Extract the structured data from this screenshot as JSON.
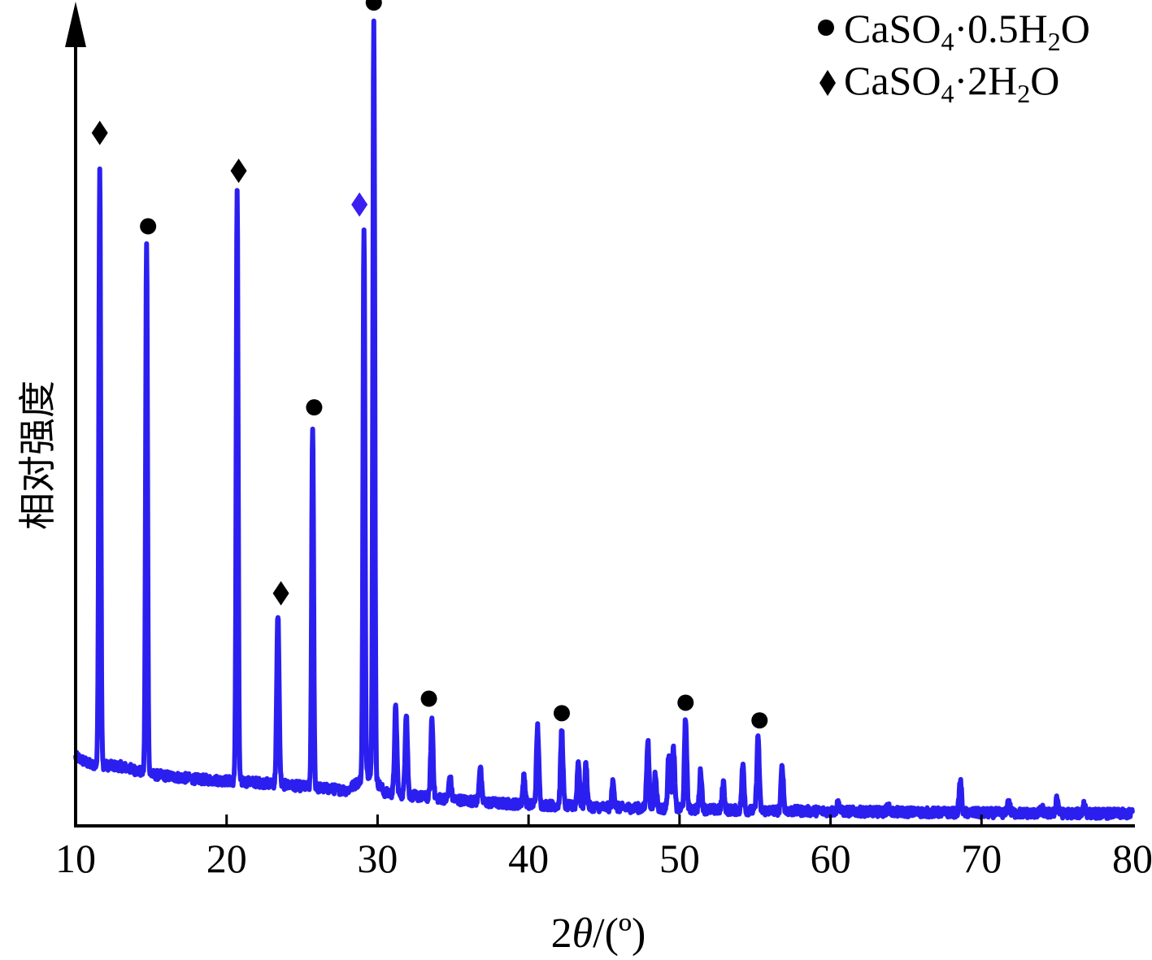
{
  "chart_data": {
    "type": "line",
    "xlabel_prefix": "2",
    "xlabel_symbol": "θ",
    "xlabel_suffix": "/(º)",
    "ylabel": "相对强度",
    "xlim": [
      10,
      80
    ],
    "ylim": [
      0,
      1
    ],
    "xticks": [
      "10",
      "20",
      "30",
      "40",
      "50",
      "60",
      "70",
      "80"
    ],
    "line_color": "#2b1ff0",
    "legend_position": "top-right",
    "legend": [
      {
        "marker": "circle",
        "formula": [
          "CaSO",
          "4",
          "·0.5H",
          "2",
          "O"
        ]
      },
      {
        "marker": "diamond",
        "formula": [
          "CaSO",
          "4",
          "·2H",
          "2",
          "O"
        ]
      }
    ],
    "baseline": [
      [
        10,
        0.08
      ],
      [
        11,
        0.07
      ],
      [
        13,
        0.068
      ],
      [
        15,
        0.058
      ],
      [
        18,
        0.052
      ],
      [
        20,
        0.05
      ],
      [
        22,
        0.048
      ],
      [
        25,
        0.043
      ],
      [
        28,
        0.038
      ],
      [
        29.5,
        0.06
      ],
      [
        30.5,
        0.035
      ],
      [
        33,
        0.03
      ],
      [
        38,
        0.022
      ],
      [
        45,
        0.017
      ],
      [
        50,
        0.015
      ],
      [
        55,
        0.013
      ],
      [
        60,
        0.012
      ],
      [
        70,
        0.01
      ],
      [
        80,
        0.009
      ]
    ],
    "peaks": [
      {
        "x": 11.6,
        "y": 0.813,
        "phase": "CaSO4·2H2O"
      },
      {
        "x": 14.7,
        "y": 0.715,
        "phase": "CaSO4·0.5H2O"
      },
      {
        "x": 20.7,
        "y": 0.78,
        "phase": "CaSO4·2H2O"
      },
      {
        "x": 23.4,
        "y": 0.257,
        "phase": "CaSO4·2H2O"
      },
      {
        "x": 25.7,
        "y": 0.49,
        "phase": "CaSO4·0.5H2O"
      },
      {
        "x": 29.1,
        "y": 0.74,
        "phase": "CaSO4·2H2O"
      },
      {
        "x": 29.75,
        "y": 0.99,
        "phase": "CaSO4·0.5H2O"
      },
      {
        "x": 31.2,
        "y": 0.14,
        "phase": ""
      },
      {
        "x": 31.9,
        "y": 0.135,
        "phase": ""
      },
      {
        "x": 33.6,
        "y": 0.127,
        "phase": "CaSO4·0.5H2O"
      },
      {
        "x": 34.8,
        "y": 0.055,
        "phase": ""
      },
      {
        "x": 36.8,
        "y": 0.068,
        "phase": ""
      },
      {
        "x": 39.7,
        "y": 0.055,
        "phase": ""
      },
      {
        "x": 40.6,
        "y": 0.117,
        "phase": ""
      },
      {
        "x": 42.2,
        "y": 0.113,
        "phase": "CaSO4·0.5H2O"
      },
      {
        "x": 43.3,
        "y": 0.075,
        "phase": ""
      },
      {
        "x": 43.8,
        "y": 0.07,
        "phase": ""
      },
      {
        "x": 45.6,
        "y": 0.05,
        "phase": ""
      },
      {
        "x": 47.9,
        "y": 0.1,
        "phase": ""
      },
      {
        "x": 48.4,
        "y": 0.06,
        "phase": ""
      },
      {
        "x": 49.3,
        "y": 0.085,
        "phase": ""
      },
      {
        "x": 49.6,
        "y": 0.09,
        "phase": ""
      },
      {
        "x": 50.4,
        "y": 0.126,
        "phase": "CaSO4·0.5H2O"
      },
      {
        "x": 51.4,
        "y": 0.062,
        "phase": ""
      },
      {
        "x": 52.9,
        "y": 0.048,
        "phase": ""
      },
      {
        "x": 54.2,
        "y": 0.07,
        "phase": ""
      },
      {
        "x": 55.2,
        "y": 0.105,
        "phase": "CaSO4·0.5H2O"
      },
      {
        "x": 56.8,
        "y": 0.068,
        "phase": ""
      },
      {
        "x": 60.5,
        "y": 0.022,
        "phase": ""
      },
      {
        "x": 63.8,
        "y": 0.018,
        "phase": ""
      },
      {
        "x": 68.6,
        "y": 0.05,
        "phase": ""
      },
      {
        "x": 71.8,
        "y": 0.025,
        "phase": ""
      },
      {
        "x": 74.0,
        "y": 0.015,
        "phase": ""
      },
      {
        "x": 75.0,
        "y": 0.03,
        "phase": ""
      },
      {
        "x": 76.8,
        "y": 0.022,
        "phase": ""
      }
    ],
    "markers": [
      {
        "x": 11.6,
        "y": 0.855,
        "type": "diamond"
      },
      {
        "x": 14.8,
        "y": 0.739,
        "type": "circle"
      },
      {
        "x": 20.8,
        "y": 0.808,
        "type": "diamond"
      },
      {
        "x": 23.6,
        "y": 0.283,
        "type": "diamond"
      },
      {
        "x": 25.8,
        "y": 0.514,
        "type": "circle"
      },
      {
        "x": 28.8,
        "y": 0.766,
        "type": "diamond",
        "color": "#3a1ff0"
      },
      {
        "x": 29.75,
        "y": 1.017,
        "type": "circle"
      },
      {
        "x": 33.4,
        "y": 0.152,
        "type": "circle"
      },
      {
        "x": 42.2,
        "y": 0.134,
        "type": "circle"
      },
      {
        "x": 50.4,
        "y": 0.147,
        "type": "circle"
      },
      {
        "x": 55.3,
        "y": 0.125,
        "type": "circle"
      }
    ]
  }
}
